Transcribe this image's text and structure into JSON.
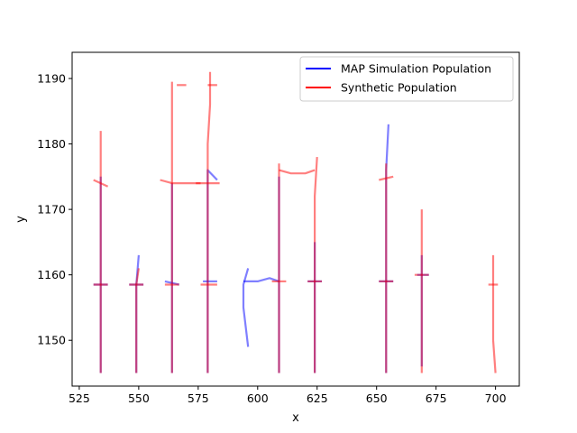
{
  "chart_data": {
    "type": "line",
    "xlabel": "x",
    "ylabel": "y",
    "xlim": [
      522,
      710
    ],
    "ylim": [
      1143,
      1194
    ],
    "xticks": [
      525,
      550,
      575,
      600,
      625,
      650,
      675,
      700
    ],
    "yticks": [
      1150,
      1160,
      1170,
      1180,
      1190
    ],
    "grid": false,
    "legend_position": "top-right",
    "series": [
      {
        "name": "MAP Simulation Population",
        "color": "#0000ff",
        "opacity": 0.5,
        "paths": [
          [
            [
              534,
              1145
            ],
            [
              534,
              1152
            ],
            [
              534,
              1158.5
            ],
            [
              534,
              1165
            ],
            [
              534,
              1172
            ],
            [
              534,
              1175
            ]
          ],
          [
            [
              531,
              1158.5
            ],
            [
              537,
              1158.5
            ]
          ],
          [
            [
              549,
              1145
            ],
            [
              549,
              1152
            ],
            [
              549,
              1158.5
            ],
            [
              550,
              1163
            ]
          ],
          [
            [
              546,
              1158.5
            ],
            [
              552,
              1158.5
            ]
          ],
          [
            [
              564,
              1145
            ],
            [
              564,
              1158.5
            ],
            [
              564,
              1168
            ],
            [
              564,
              1174
            ]
          ],
          [
            [
              561,
              1159
            ],
            [
              567,
              1158.5
            ]
          ],
          [
            [
              579,
              1145
            ],
            [
              579,
              1158.5
            ],
            [
              579,
              1170
            ],
            [
              579,
              1176
            ],
            [
              583,
              1174.5
            ]
          ],
          [
            [
              577,
              1159
            ],
            [
              583,
              1159
            ]
          ],
          [
            [
              596,
              1149
            ],
            [
              594,
              1155
            ],
            [
              594,
              1158.5
            ],
            [
              596,
              1161
            ]
          ],
          [
            [
              594,
              1159
            ],
            [
              600,
              1159
            ],
            [
              605,
              1159.5
            ],
            [
              609,
              1159
            ]
          ],
          [
            [
              609,
              1145
            ],
            [
              609,
              1158.5
            ],
            [
              609,
              1168
            ],
            [
              609,
              1175
            ]
          ],
          [
            [
              624,
              1145
            ],
            [
              624,
              1158.5
            ],
            [
              624,
              1165
            ]
          ],
          [
            [
              621,
              1159
            ],
            [
              627,
              1159
            ]
          ],
          [
            [
              654,
              1145
            ],
            [
              654,
              1158.5
            ],
            [
              654,
              1170
            ],
            [
              654,
              1176
            ],
            [
              655,
              1183
            ]
          ],
          [
            [
              651,
              1159
            ],
            [
              657,
              1159
            ]
          ],
          [
            [
              669,
              1146
            ],
            [
              669,
              1159
            ],
            [
              669,
              1163
            ]
          ],
          [
            [
              667,
              1160
            ],
            [
              672,
              1160
            ]
          ]
        ]
      },
      {
        "name": "Synthetic Population",
        "color": "#ff0000",
        "opacity": 0.5,
        "paths": [
          [
            [
              534,
              1145
            ],
            [
              534,
              1152
            ],
            [
              534,
              1158.5
            ],
            [
              534,
              1166
            ],
            [
              534,
              1172
            ],
            [
              534,
              1176
            ],
            [
              534,
              1182
            ]
          ],
          [
            [
              531,
              1174.5
            ],
            [
              534,
              1174
            ],
            [
              537,
              1173.5
            ]
          ],
          [
            [
              531,
              1158.5
            ],
            [
              537,
              1158.5
            ]
          ],
          [
            [
              549,
              1145
            ],
            [
              549,
              1152
            ],
            [
              549,
              1158.5
            ],
            [
              550,
              1161
            ]
          ],
          [
            [
              546,
              1158.5
            ],
            [
              552,
              1158.5
            ]
          ],
          [
            [
              564,
              1145
            ],
            [
              564,
              1152
            ],
            [
              564,
              1158.5
            ],
            [
              564,
              1166
            ],
            [
              564,
              1174
            ],
            [
              564,
              1180
            ],
            [
              564,
              1189.5
            ]
          ],
          [
            [
              559,
              1174.5
            ],
            [
              564,
              1174
            ],
            [
              570,
              1174
            ],
            [
              576,
              1174
            ]
          ],
          [
            [
              566,
              1189
            ],
            [
              570,
              1189
            ]
          ],
          [
            [
              561,
              1158.5
            ],
            [
              567,
              1158.5
            ]
          ],
          [
            [
              579,
              1145
            ],
            [
              579,
              1152
            ],
            [
              579,
              1158.5
            ],
            [
              579,
              1166
            ],
            [
              579,
              1174
            ],
            [
              579,
              1180
            ],
            [
              580,
              1186
            ],
            [
              580,
              1191
            ]
          ],
          [
            [
              574,
              1174
            ],
            [
              579,
              1174
            ],
            [
              584,
              1174
            ]
          ],
          [
            [
              579,
              1189
            ],
            [
              583,
              1189
            ]
          ],
          [
            [
              576,
              1158.5
            ],
            [
              583,
              1158.5
            ]
          ],
          [
            [
              609,
              1145
            ],
            [
              609,
              1152
            ],
            [
              609,
              1159
            ],
            [
              609,
              1166
            ],
            [
              609,
              1174
            ],
            [
              609,
              1177
            ]
          ],
          [
            [
              609,
              1176
            ],
            [
              614,
              1175.5
            ],
            [
              620,
              1175.5
            ],
            [
              624,
              1176
            ]
          ],
          [
            [
              606,
              1159
            ],
            [
              612,
              1159
            ]
          ],
          [
            [
              624,
              1145
            ],
            [
              624,
              1152
            ],
            [
              624,
              1159
            ],
            [
              624,
              1166
            ],
            [
              624,
              1172
            ],
            [
              625,
              1178
            ]
          ],
          [
            [
              621,
              1159
            ],
            [
              627,
              1159
            ]
          ],
          [
            [
              654,
              1145
            ],
            [
              654,
              1152
            ],
            [
              654,
              1159
            ],
            [
              654,
              1166
            ],
            [
              654,
              1174
            ],
            [
              654,
              1177
            ]
          ],
          [
            [
              651,
              1174.5
            ],
            [
              657,
              1175
            ]
          ],
          [
            [
              651,
              1159
            ],
            [
              657,
              1159
            ]
          ],
          [
            [
              669,
              1145
            ],
            [
              669,
              1152
            ],
            [
              669,
              1159.5
            ],
            [
              669,
              1165
            ],
            [
              669,
              1170
            ]
          ],
          [
            [
              666,
              1160
            ],
            [
              672,
              1160
            ]
          ],
          [
            [
              700,
              1145
            ],
            [
              699,
              1150
            ],
            [
              699,
              1155
            ],
            [
              699,
              1158.5
            ],
            [
              699,
              1163
            ]
          ],
          [
            [
              697,
              1158.5
            ],
            [
              701,
              1158.5
            ]
          ]
        ]
      }
    ]
  }
}
